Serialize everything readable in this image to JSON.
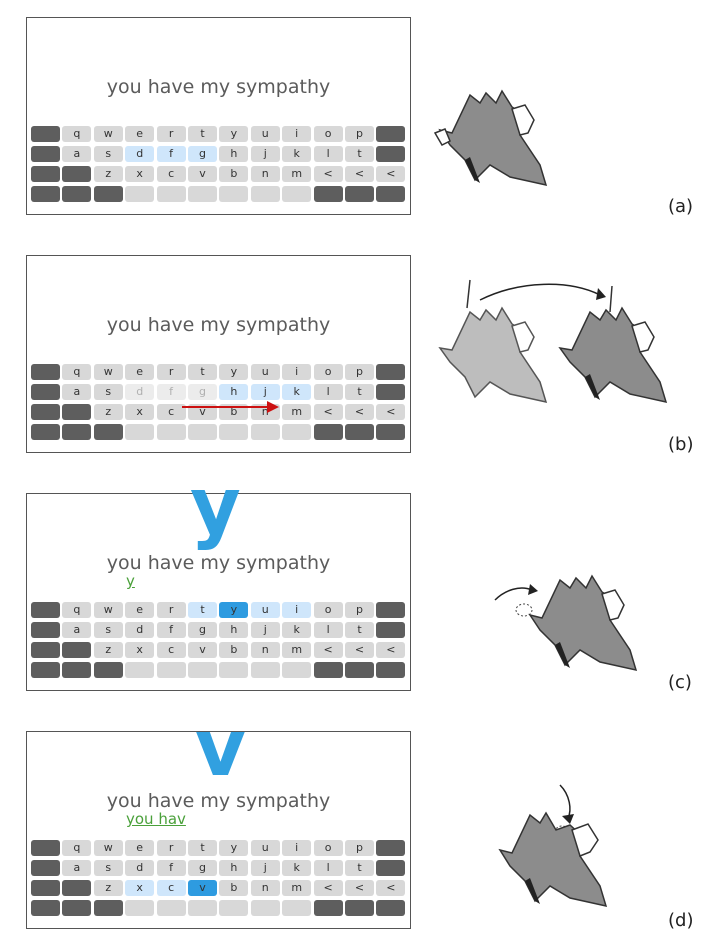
{
  "phrase": "you have my sympathy",
  "keyboard_rows": [
    [
      "",
      "q",
      "w",
      "e",
      "r",
      "t",
      "y",
      "u",
      "i",
      "o",
      "p",
      ""
    ],
    [
      "",
      "a",
      "s",
      "d",
      "f",
      "g",
      "h",
      "j",
      "k",
      "l",
      "t",
      ""
    ],
    [
      "",
      "",
      "z",
      "x",
      "c",
      "v",
      "b",
      "n",
      "m",
      "<",
      "<",
      "<"
    ],
    [
      "",
      "",
      "",
      "",
      "",
      "",
      "",
      "",
      "",
      "",
      "",
      ""
    ]
  ],
  "panels": [
    {
      "label": "(a)",
      "typed": "",
      "big_letter": ""
    },
    {
      "label": "(b)",
      "typed": "",
      "big_letter": ""
    },
    {
      "label": "(c)",
      "typed": "y",
      "big_letter": "y"
    },
    {
      "label": "(d)",
      "typed": "you hav",
      "big_letter": "v"
    }
  ],
  "colors": {
    "highlight": "#cfe6fb",
    "selected": "#2e9be0",
    "typed_text": "#4aa03a",
    "arrow": "#cc1111"
  }
}
